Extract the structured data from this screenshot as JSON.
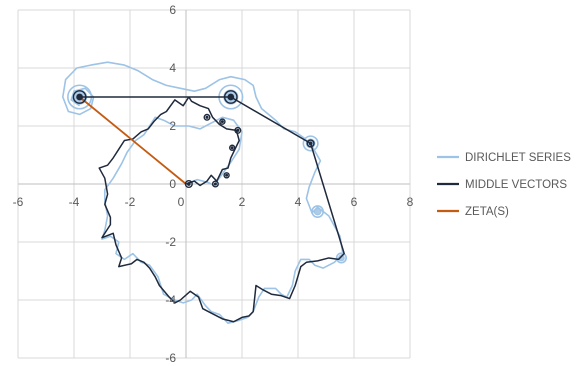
{
  "chart_data": {
    "type": "line",
    "title": "",
    "xlabel": "",
    "ylabel": "",
    "xlim": [
      -6,
      8
    ],
    "ylim": [
      -6,
      6
    ],
    "xticks": [
      -6,
      -4,
      -2,
      0,
      2,
      4,
      6,
      8
    ],
    "yticks": [
      -6,
      -4,
      -2,
      0,
      2,
      4,
      6
    ],
    "grid": true,
    "legend_position": "right",
    "series": [
      {
        "name": "DIRICHLET SERIES",
        "color": "#9dc3e6",
        "points": [
          [
            0,
            0
          ],
          [
            0.4,
            0.15
          ],
          [
            0.8,
            0.05
          ],
          [
            1.0,
            -0.05
          ],
          [
            1.3,
            0.35
          ],
          [
            1.6,
            0.75
          ],
          [
            1.9,
            1.2
          ],
          [
            2.0,
            1.8
          ],
          [
            1.7,
            2.2
          ],
          [
            1.3,
            2.3
          ],
          [
            0.9,
            2.1
          ],
          [
            0.5,
            1.9
          ],
          [
            0.1,
            2.0
          ],
          [
            -0.4,
            2.0
          ],
          [
            -0.8,
            2.2
          ],
          [
            -1.1,
            2.3
          ],
          [
            -1.3,
            2.0
          ],
          [
            -1.5,
            1.7
          ],
          [
            -1.8,
            1.5
          ],
          [
            -2.1,
            1.1
          ],
          [
            -2.3,
            0.7
          ],
          [
            -2.6,
            0.2
          ],
          [
            -2.9,
            -0.2
          ],
          [
            -2.9,
            -0.6
          ],
          [
            -2.8,
            -1.1
          ],
          [
            -2.9,
            -1.6
          ],
          [
            -3.0,
            -1.9
          ],
          [
            -2.7,
            -1.8
          ],
          [
            -2.4,
            -2.0
          ],
          [
            -2.5,
            -2.4
          ],
          [
            -2.2,
            -2.6
          ],
          [
            -1.9,
            -2.4
          ],
          [
            -1.6,
            -2.7
          ],
          [
            -1.3,
            -2.8
          ],
          [
            -1.0,
            -3.2
          ],
          [
            -0.8,
            -3.8
          ],
          [
            -0.4,
            -4.0
          ],
          [
            -0.1,
            -4.1
          ],
          [
            0.2,
            -4.0
          ],
          [
            0.4,
            -3.8
          ],
          [
            0.7,
            -4.2
          ],
          [
            0.9,
            -4.4
          ],
          [
            1.2,
            -4.5
          ],
          [
            1.5,
            -4.8
          ],
          [
            1.9,
            -4.7
          ],
          [
            2.2,
            -4.6
          ],
          [
            2.4,
            -4.4
          ],
          [
            2.6,
            -3.9
          ],
          [
            2.8,
            -3.6
          ],
          [
            3.2,
            -3.6
          ],
          [
            3.4,
            -3.8
          ],
          [
            3.6,
            -3.9
          ],
          [
            3.8,
            -3.5
          ],
          [
            3.9,
            -3.0
          ],
          [
            4.1,
            -2.6
          ],
          [
            4.4,
            -2.6
          ],
          [
            4.6,
            -2.8
          ],
          [
            4.9,
            -2.9
          ],
          [
            5.3,
            -2.7
          ],
          [
            5.6,
            -2.4
          ],
          [
            5.5,
            -1.8
          ],
          [
            5.1,
            -1.1
          ],
          [
            4.7,
            -0.8
          ],
          [
            4.5,
            -1.0
          ],
          [
            4.3,
            -0.5
          ],
          [
            4.4,
            -0.1
          ],
          [
            4.6,
            0.4
          ],
          [
            4.8,
            0.8
          ],
          [
            4.5,
            1.3
          ],
          [
            4.2,
            1.6
          ],
          [
            3.9,
            1.8
          ],
          [
            3.5,
            1.9
          ],
          [
            3.2,
            2.2
          ],
          [
            2.7,
            2.6
          ],
          [
            2.5,
            3.0
          ],
          [
            2.4,
            3.4
          ],
          [
            2.1,
            3.6
          ],
          [
            1.6,
            3.7
          ],
          [
            1.2,
            3.6
          ],
          [
            0.7,
            3.3
          ],
          [
            0.3,
            3.2
          ],
          [
            -0.2,
            3.3
          ],
          [
            -0.7,
            3.4
          ],
          [
            -1.2,
            3.6
          ],
          [
            -1.7,
            3.9
          ],
          [
            -2.2,
            4.1
          ],
          [
            -2.8,
            4.2
          ],
          [
            -3.4,
            4.1
          ],
          [
            -3.9,
            4.0
          ],
          [
            -4.3,
            3.6
          ],
          [
            -4.4,
            3.0
          ],
          [
            -4.2,
            2.5
          ],
          [
            -3.8,
            2.4
          ],
          [
            -3.4,
            2.6
          ],
          [
            -3.3,
            3.0
          ],
          [
            -3.6,
            3.3
          ],
          [
            -4.0,
            3.2
          ],
          [
            -4.1,
            2.9
          ],
          [
            -3.8,
            2.7
          ]
        ]
      },
      {
        "name": "MIDDLE VECTORS",
        "color": "#1f2a3c",
        "points": [
          [
            0,
            0
          ],
          [
            0.3,
            0.1
          ],
          [
            0.5,
            -0.05
          ],
          [
            0.75,
            0.1
          ],
          [
            0.9,
            0.3
          ],
          [
            1.1,
            0.1
          ],
          [
            1.3,
            0.5
          ],
          [
            1.5,
            0.55
          ],
          [
            1.6,
            0.9
          ],
          [
            1.75,
            1.2
          ],
          [
            1.9,
            1.5
          ],
          [
            1.8,
            1.85
          ],
          [
            1.45,
            1.9
          ],
          [
            1.2,
            2.05
          ],
          [
            0.95,
            2.3
          ],
          [
            0.8,
            2.6
          ],
          [
            0.5,
            2.7
          ],
          [
            0.2,
            2.85
          ],
          [
            0.1,
            3.0
          ],
          [
            -0.1,
            2.7
          ],
          [
            -0.4,
            2.9
          ],
          [
            -0.7,
            2.5
          ],
          [
            -0.9,
            2.4
          ],
          [
            -1.15,
            2.15
          ],
          [
            -1.35,
            1.9
          ],
          [
            -1.6,
            1.8
          ],
          [
            -1.9,
            1.55
          ],
          [
            -2.2,
            1.5
          ],
          [
            -2.4,
            1.2
          ],
          [
            -2.6,
            0.9
          ],
          [
            -2.8,
            0.65
          ],
          [
            -3.1,
            0.55
          ],
          [
            -2.9,
            0.2
          ],
          [
            -2.8,
            -0.35
          ],
          [
            -2.9,
            -0.7
          ],
          [
            -2.7,
            -1.15
          ],
          [
            -2.7,
            -1.4
          ],
          [
            -3.0,
            -1.85
          ],
          [
            -2.6,
            -1.7
          ],
          [
            -2.5,
            -2.1
          ],
          [
            -2.3,
            -2.55
          ],
          [
            -2.4,
            -2.85
          ],
          [
            -1.95,
            -2.75
          ],
          [
            -1.75,
            -2.6
          ],
          [
            -1.5,
            -2.7
          ],
          [
            -1.3,
            -2.9
          ],
          [
            -1.1,
            -3.2
          ],
          [
            -0.95,
            -3.5
          ],
          [
            -0.6,
            -3.9
          ],
          [
            -0.4,
            -4.1
          ],
          [
            -0.2,
            -4.0
          ],
          [
            0.15,
            -3.7
          ],
          [
            0.45,
            -3.9
          ],
          [
            0.6,
            -4.3
          ],
          [
            0.9,
            -4.45
          ],
          [
            1.3,
            -4.65
          ],
          [
            1.7,
            -4.75
          ],
          [
            2.0,
            -4.6
          ],
          [
            2.25,
            -4.55
          ],
          [
            2.4,
            -4.4
          ],
          [
            2.5,
            -3.5
          ],
          [
            2.75,
            -3.65
          ],
          [
            3.05,
            -3.8
          ],
          [
            3.4,
            -3.85
          ],
          [
            3.7,
            -3.95
          ],
          [
            3.9,
            -3.5
          ],
          [
            4.1,
            -2.85
          ],
          [
            4.3,
            -2.7
          ],
          [
            4.7,
            -2.65
          ],
          [
            5.1,
            -2.55
          ],
          [
            5.45,
            -2.6
          ],
          [
            5.65,
            -2.4
          ],
          [
            4.45,
            1.4
          ],
          [
            1.6,
            3.0
          ],
          [
            -3.8,
            3.0
          ]
        ]
      },
      {
        "name": "ZETA(S)",
        "color": "#c55a11",
        "points": [
          [
            0,
            0
          ],
          [
            -3.8,
            3.0
          ]
        ]
      }
    ],
    "loops": [
      {
        "x": -3.8,
        "y": 3.0,
        "r_units": 0.42
      },
      {
        "x": 1.6,
        "y": 3.0,
        "r_units": 0.42
      },
      {
        "x": 4.45,
        "y": 1.4,
        "r_units": 0.26
      },
      {
        "x": 4.7,
        "y": -0.95,
        "r_units": 0.2
      },
      {
        "x": 5.55,
        "y": -2.55,
        "r_units": 0.17
      }
    ],
    "small_loops": [
      {
        "x": -3.8,
        "y": 3.0,
        "r_units": 0.22
      },
      {
        "x": 1.6,
        "y": 3.0,
        "r_units": 0.22
      },
      {
        "x": 4.45,
        "y": 1.4,
        "r_units": 0.12
      },
      {
        "x": 1.05,
        "y": 0.0,
        "r_units": 0.1
      },
      {
        "x": 0.1,
        "y": 0.0,
        "r_units": 0.12
      },
      {
        "x": 1.45,
        "y": 0.3,
        "r_units": 0.08
      },
      {
        "x": 1.85,
        "y": 1.85,
        "r_units": 0.1
      },
      {
        "x": 0.75,
        "y": 2.3,
        "r_units": 0.1
      },
      {
        "x": 1.3,
        "y": 2.15,
        "r_units": 0.09
      },
      {
        "x": 1.65,
        "y": 1.25,
        "r_units": 0.08
      }
    ]
  }
}
